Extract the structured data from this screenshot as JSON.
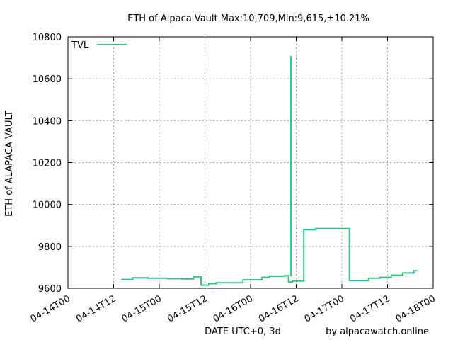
{
  "chart_data": {
    "type": "line",
    "title": "ETH of Alpaca Vault Max:10,709,Min:9,615,±10.21%",
    "xlabel": "DATE UTC+0, 3d",
    "ylabel": "ETH of ALAPACA VAULT",
    "credit": "by alpacawatch.online",
    "legend": {
      "position": "top-left",
      "label": "TVL"
    },
    "grid": true,
    "step": true,
    "line_color": "#2ec27e",
    "xlim": [
      "04-14T00",
      "04-18T00"
    ],
    "ylim": [
      9600,
      10800
    ],
    "x_ticks": [
      "04-14T00",
      "04-14T12",
      "04-15T00",
      "04-15T12",
      "04-16T00",
      "04-16T12",
      "04-17T00",
      "04-17T12",
      "04-18T00"
    ],
    "y_ticks": [
      9600,
      9800,
      10000,
      10200,
      10400,
      10600,
      10800
    ],
    "series": [
      {
        "name": "TVL",
        "x": [
          "04-14T14",
          "04-14T17",
          "04-14T21",
          "04-15T02",
          "04-15T06",
          "04-15T09",
          "04-15T11",
          "04-15T13",
          "04-15T15",
          "04-15T22",
          "04-16T03",
          "04-16T05",
          "04-16T09",
          "04-16T10",
          "04-16T11",
          "04-16T14",
          "04-16T17",
          "04-17T02",
          "04-17T07",
          "04-17T10",
          "04-17T13",
          "04-17T16",
          "04-17T19"
        ],
        "values": [
          9642,
          9650,
          9648,
          9646,
          9645,
          9655,
          9615,
          9622,
          9626,
          9640,
          9652,
          9658,
          9660,
          9630,
          9635,
          9880,
          9885,
          9637,
          9648,
          9652,
          9662,
          9673,
          9684
        ]
      }
    ],
    "spike": {
      "x": "04-16T11",
      "value": 10709
    }
  }
}
